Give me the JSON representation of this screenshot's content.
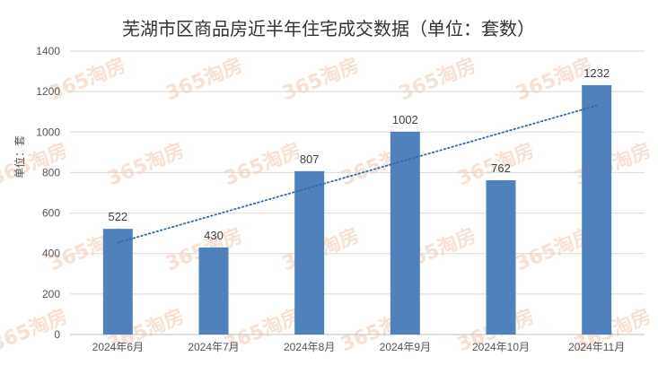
{
  "chart_data": {
    "type": "bar",
    "title": "芜湖市区商品房近半年住宅成交数据（单位：套数）",
    "ylabel": "单位：套",
    "xlabel": "",
    "categories": [
      "2024年6月",
      "2024年7月",
      "2024年8月",
      "2024年9月",
      "2024年10月",
      "2024年11月"
    ],
    "values": [
      522,
      430,
      807,
      1002,
      762,
      1232
    ],
    "ylim": [
      0,
      1400
    ],
    "yticks": [
      0,
      200,
      400,
      600,
      800,
      1000,
      1200,
      1400
    ],
    "data_labels": true,
    "trendline": {
      "type": "linear",
      "style": "dotted"
    },
    "grid": true,
    "legend": "none",
    "bar_color": "#4f81bd",
    "trend_color": "#2e6bb0",
    "watermark": "365淘房"
  }
}
